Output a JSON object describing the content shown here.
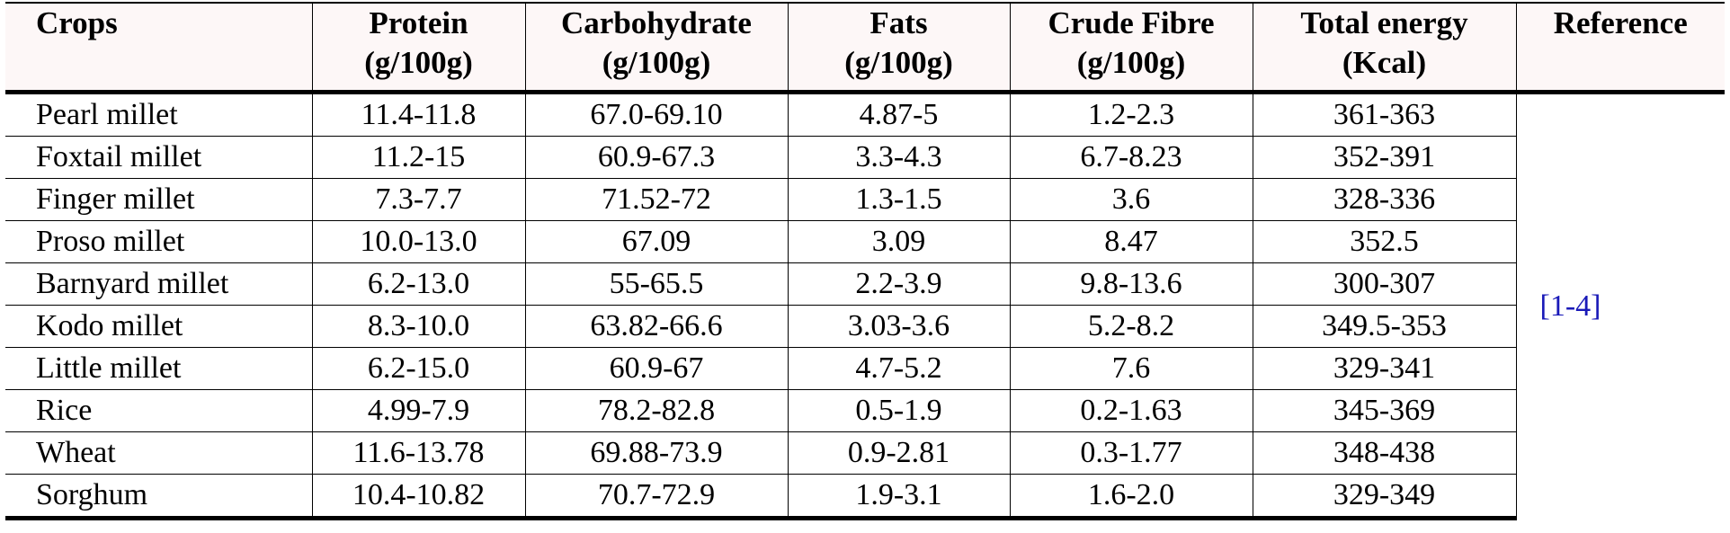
{
  "table": {
    "headers": [
      {
        "lines": [
          "Crops"
        ]
      },
      {
        "lines": [
          "Protein",
          "(g/100g)"
        ]
      },
      {
        "lines": [
          "Carbohydrate",
          "(g/100g)"
        ]
      },
      {
        "lines": [
          "Fats",
          "(g/100g)"
        ]
      },
      {
        "lines": [
          "Crude Fibre",
          "(g/100g)"
        ]
      },
      {
        "lines": [
          "Total energy",
          "(Kcal)"
        ]
      },
      {
        "lines": [
          "Reference"
        ]
      }
    ],
    "rows": [
      {
        "crop": "Pearl millet",
        "protein": "11.4-11.8",
        "carbohydrate": "67.0-69.10",
        "fats": "4.87-5",
        "fibre": "1.2-2.3",
        "energy": "361-363"
      },
      {
        "crop": "Foxtail millet",
        "protein": "11.2-15",
        "carbohydrate": "60.9-67.3",
        "fats": "3.3-4.3",
        "fibre": "6.7-8.23",
        "energy": "352-391"
      },
      {
        "crop": "Finger millet",
        "protein": "7.3-7.7",
        "carbohydrate": "71.52-72",
        "fats": "1.3-1.5",
        "fibre": "3.6",
        "energy": "328-336"
      },
      {
        "crop": "Proso millet",
        "protein": "10.0-13.0",
        "carbohydrate": "67.09",
        "fats": "3.09",
        "fibre": "8.47",
        "energy": "352.5"
      },
      {
        "crop": "Barnyard millet",
        "protein": "6.2-13.0",
        "carbohydrate": "55-65.5",
        "fats": "2.2-3.9",
        "fibre": "9.8-13.6",
        "energy": "300-307"
      },
      {
        "crop": "Kodo millet",
        "protein": "8.3-10.0",
        "carbohydrate": "63.82-66.6",
        "fats": "3.03-3.6",
        "fibre": "5.2-8.2",
        "energy": "349.5-353"
      },
      {
        "crop": "Little millet",
        "protein": "6.2-15.0",
        "carbohydrate": "60.9-67",
        "fats": "4.7-5.2",
        "fibre": "7.6",
        "energy": "329-341"
      },
      {
        "crop": "Rice",
        "protein": "4.99-7.9",
        "carbohydrate": "78.2-82.8",
        "fats": "0.5-1.9",
        "fibre": "0.2-1.63",
        "energy": "345-369"
      },
      {
        "crop": "Wheat",
        "protein": "11.6-13.78",
        "carbohydrate": "69.88-73.9",
        "fats": "0.9-2.81",
        "fibre": "0.3-1.77",
        "energy": "348-438"
      },
      {
        "crop": "Sorghum",
        "protein": "10.4-10.82",
        "carbohydrate": "70.7-72.9",
        "fats": "1.9-3.1",
        "fibre": "1.6-2.0",
        "energy": "329-349"
      }
    ],
    "reference": "[1-4]"
  },
  "colors": {
    "header_bg": "#fdf7f7",
    "link": "#1a1ab8"
  }
}
